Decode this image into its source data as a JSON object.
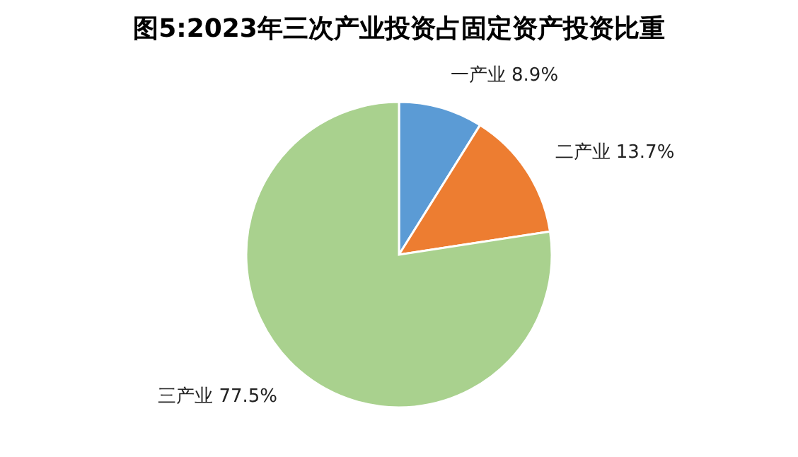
{
  "chart_data": {
    "type": "pie",
    "title": "图5:2023年三次产业投资占固定资产投资比重",
    "categories": [
      "一产业",
      "二产业",
      "三产业"
    ],
    "values": [
      8.9,
      13.7,
      77.5
    ],
    "colors": [
      "#5b9bd5",
      "#ed7d31",
      "#a9d18e"
    ],
    "value_labels": [
      "8.9%",
      "13.7%",
      "77.5%"
    ],
    "legend": false
  }
}
